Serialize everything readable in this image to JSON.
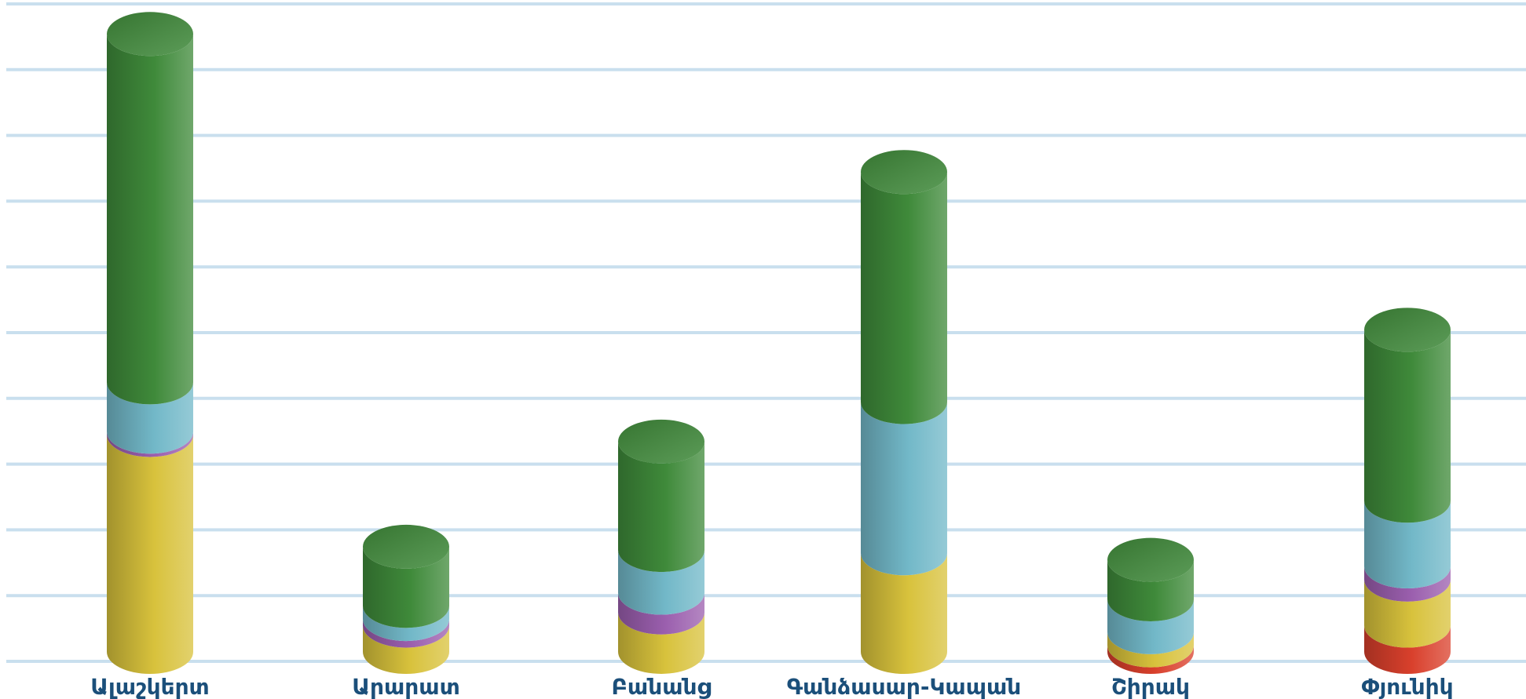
{
  "chart_data": {
    "type": "bar",
    "stacked": true,
    "style": "3d-cylinder",
    "title": "",
    "xlabel": "",
    "ylabel": "",
    "ylim": [
      0,
      10
    ],
    "grid": true,
    "categories": [
      "Ալաշկերտ",
      "Արարատ",
      "Բանանց",
      "Գանձասար-Կապան",
      "Շիրակ",
      "Փյունիկ"
    ],
    "series": [
      {
        "color": "#d9402c",
        "values": [
          0,
          0,
          0,
          0,
          0.1,
          0.4
        ]
      },
      {
        "color": "#d8c23c",
        "values": [
          3.3,
          0.4,
          0.6,
          1.5,
          0.2,
          0.7
        ]
      },
      {
        "color": "#9b5fae",
        "values": [
          0.05,
          0.1,
          0.3,
          0,
          0,
          0.2
        ]
      },
      {
        "color": "#72b8c8",
        "values": [
          0.75,
          0.2,
          0.65,
          2.3,
          0.5,
          1.0
        ]
      },
      {
        "color": "#3f8a3a",
        "values": [
          5.3,
          0.9,
          1.65,
          3.5,
          0.6,
          2.6
        ]
      }
    ]
  }
}
